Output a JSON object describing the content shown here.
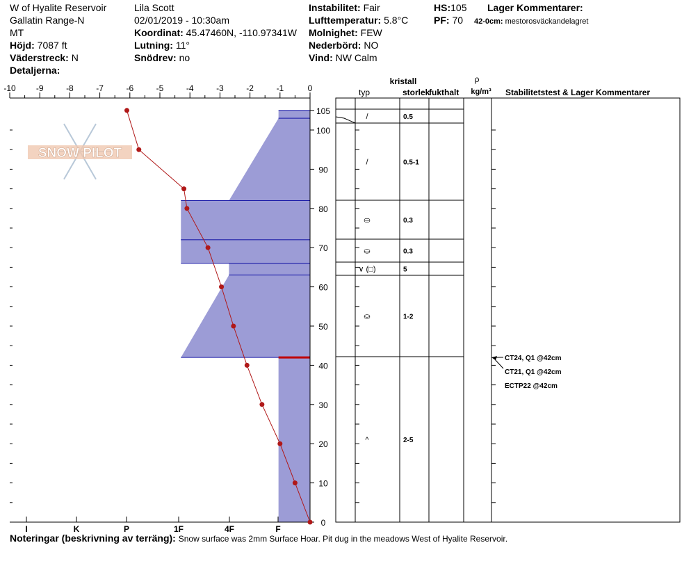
{
  "header": {
    "location": "W of Hyalite Reservoir",
    "range": "Gallatin Range-N",
    "state": "MT",
    "elevation_label": "Höjd:",
    "elevation_value": "7087 ft",
    "aspect_label": "Väderstreck:",
    "aspect_value": "N",
    "details_label": "Detaljerna:",
    "observer": "Lila Scott",
    "datetime": "02/01/2019 - 10:30am",
    "coord_label": "Koordinat:",
    "coord_value": "45.47460N, -110.97341W",
    "slope_label": "Lutning:",
    "slope_value": "11°",
    "drift_label": "Snödrev:",
    "drift_value": "no",
    "instability_label": "Instabilitet:",
    "instability_value": "Fair",
    "airtemp_label": "Lufttemperatur:",
    "airtemp_value": "5.8°C",
    "cloud_label": "Molnighet:",
    "cloud_value": "FEW",
    "precip_label": "Nederbörd:",
    "precip_value": "NO",
    "wind_label": "Vind:",
    "wind_value": "NW Calm",
    "hs_label": "HS:",
    "hs_value": "105",
    "pf_label": "PF:",
    "pf_value": "70",
    "layer_comments_title": "Lager Kommentarer:",
    "layer_comment_depth": "42-0cm:",
    "layer_comment_text": "mestorosväckandelagret"
  },
  "watermark": "SNOW PILOT",
  "columns": {
    "crystal": "kristall",
    "type": "typ",
    "size": "storlek",
    "moisture": "fukthalt",
    "density_symbol": "ρ",
    "density_unit": "kg/m³",
    "stability": "Stabilitetstest & Lager Kommentarer"
  },
  "notes": {
    "label": "Noteringar (beskrivning av terräng):",
    "text": "Snow surface was 2mm Surface Hoar. Pit dug in the meadows West of Hyalite Reservoir."
  },
  "colors": {
    "hardness_fill": "#9c9cd6",
    "layer_line": "#1a1aa8",
    "temp": "#b01818",
    "weak_layer": "#c00000"
  },
  "chart_data": {
    "type": "snow-profile",
    "temp_axis": {
      "ticks": [
        "-10",
        "-9",
        "-8",
        "-7",
        "-6",
        "-5",
        "-4",
        "-3",
        "-2",
        "-1",
        "0"
      ],
      "range": [
        -10,
        0
      ]
    },
    "hardness_axis": {
      "ticks": [
        "I",
        "K",
        "P",
        "1F",
        "4F",
        "F"
      ]
    },
    "height_axis": {
      "ticks": [
        "0",
        "10",
        "20",
        "30",
        "40",
        "50",
        "60",
        "70",
        "80",
        "90",
        "100",
        "105"
      ],
      "range": [
        0,
        105
      ]
    },
    "temperature_profile": [
      {
        "height": 105,
        "temp": -6.1
      },
      {
        "height": 95,
        "temp": -5.7
      },
      {
        "height": 85,
        "temp": -4.2
      },
      {
        "height": 80,
        "temp": -4.1
      },
      {
        "height": 70,
        "temp": -3.4
      },
      {
        "height": 60,
        "temp": -2.95
      },
      {
        "height": 50,
        "temp": -2.55
      },
      {
        "height": 40,
        "temp": -2.1
      },
      {
        "height": 30,
        "temp": -1.6
      },
      {
        "height": 20,
        "temp": -1.0
      },
      {
        "height": 10,
        "temp": -0.5
      },
      {
        "height": 0,
        "temp": 0
      }
    ],
    "layers": [
      {
        "top": 105,
        "bottom": 103,
        "crystal": "/",
        "size": "0.5",
        "hardness_top": -1.05,
        "hardness_bottom": -1.05
      },
      {
        "top": 103,
        "bottom": 82,
        "crystal": "/",
        "size": "0.5-1",
        "hardness_top": -1.05,
        "hardness_bottom": -2.7
      },
      {
        "top": 82,
        "bottom": 72,
        "crystal": "⛀",
        "size": "0.3",
        "hardness_top": -4.3,
        "hardness_bottom": -4.3
      },
      {
        "top": 72,
        "bottom": 66,
        "crystal": "⛀",
        "size": "0.3",
        "hardness_top": -4.3,
        "hardness_bottom": -4.3
      },
      {
        "top": 66,
        "bottom": 63,
        "crystal": "∨ (□)",
        "size": "5",
        "hardness_top": -2.7,
        "hardness_bottom": -2.7
      },
      {
        "top": 63,
        "bottom": 42,
        "crystal": "⛀",
        "size": "1-2",
        "hardness_top": -2.7,
        "hardness_bottom": -4.3
      },
      {
        "top": 42,
        "bottom": 0,
        "crystal": "^",
        "size": "2-5",
        "hardness_top": -1.05,
        "hardness_bottom": -1.05
      }
    ],
    "weak_layer_height": 42,
    "stability_tests": [
      "CT24, Q1 @42cm",
      "CT21, Q1 @42cm",
      "ECTP22 @42cm"
    ]
  }
}
